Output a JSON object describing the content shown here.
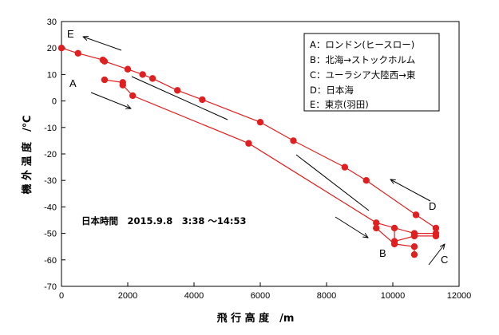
{
  "chart_data": {
    "type": "line",
    "title": "",
    "xlabel": "飛 行 高 度　/m",
    "ylabel": "機 外 温 度　/℃",
    "xlim": [
      0,
      12000
    ],
    "ylim": [
      -70,
      30
    ],
    "x_ticks": [
      0,
      2000,
      4000,
      6000,
      8000,
      10000,
      12000
    ],
    "y_ticks": [
      -70,
      -60,
      -50,
      -40,
      -30,
      -20,
      -10,
      0,
      10,
      20,
      30
    ],
    "x_tick_labels": [
      "0",
      "2000",
      "4000",
      "6000",
      "8000",
      "10000",
      "12000"
    ],
    "y_tick_labels": [
      "-70",
      "-60",
      "-50",
      "-40",
      "-30",
      "-20",
      "-10",
      "0",
      "10",
      "20",
      "30"
    ],
    "grid": false,
    "line_color": "#e02020",
    "marker_color": "#e02020",
    "annotation": "日本時間　2015.9.8　3:38 ～14:53",
    "legend": {
      "placement": "top-right",
      "entries": [
        "A：ロンドン(ヒースロー)",
        "B：北海→ストックホルム",
        "C：ユーラシア大陸西→東",
        "D：日本海",
        "E：東京(羽田)"
      ]
    },
    "route_letters": [
      "A",
      "B",
      "C",
      "D",
      "E"
    ],
    "series": [
      {
        "x": [
          0,
          500,
          1250,
          1300,
          2000,
          2450,
          2750,
          3500,
          4250,
          6000,
          7000,
          8550,
          9200,
          10700,
          11300
        ],
        "y": [
          20,
          18,
          15.5,
          15,
          12,
          10,
          8.5,
          4,
          0.5,
          -8,
          -15,
          -25,
          -30,
          -43,
          -48
        ]
      },
      {
        "x": [
          1300,
          1850,
          1850,
          2150,
          5650,
          9500,
          10650,
          11300
        ],
        "y": [
          8,
          7,
          6,
          2,
          -16,
          -46,
          -50,
          -50
        ]
      },
      {
        "x": [
          9500,
          10050,
          10650,
          10650
        ],
        "y": [
          -48,
          -54,
          -55,
          -58
        ]
      },
      {
        "x": [
          10050,
          10050,
          10650,
          11300
        ],
        "y": [
          -48,
          -53,
          -51,
          -51
        ]
      }
    ]
  }
}
